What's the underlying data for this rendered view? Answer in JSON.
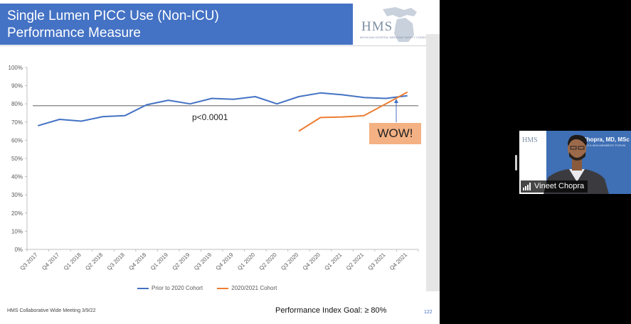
{
  "slide": {
    "title_line1": "Single Lumen PICC Use (Non-ICU)",
    "title_line2": "Performance Measure",
    "logo": {
      "text": "HMS",
      "subtitle": "MICHIGAN HOSPITAL MEDICINE SAFETY CONSORTIUM",
      "icon": "michigan-map-logo"
    },
    "footer_left": "HMS Collaborative Wide Meeting 3/9/22",
    "footer_goal": "Performance Index Goal: ≥ 80%",
    "page_number": "122",
    "wow_callout": "WOW!"
  },
  "chart_data": {
    "type": "line",
    "categories": [
      "Q3 2017",
      "Q4 2017",
      "Q1 2018",
      "Q2 2018",
      "Q3 2018",
      "Q4 2018",
      "Q1 2019",
      "Q2 2019",
      "Q3 2019",
      "Q4 2019",
      "Q1 2020",
      "Q2 2020",
      "Q3 2020",
      "Q4 2020",
      "Q1 2021",
      "Q2 2021",
      "Q3 2021",
      "Q4 2021"
    ],
    "series": [
      {
        "name": "Prior to 2020 Cohort",
        "color": "#4472c4",
        "values": [
          68,
          71.5,
          70.5,
          73,
          73.5,
          79.5,
          82,
          80,
          83,
          82.5,
          84,
          80,
          84,
          86,
          85,
          83.5,
          83,
          84.5
        ]
      },
      {
        "name": "2020/2021 Cohort",
        "color": "#ed7d31",
        "values": [
          null,
          null,
          null,
          null,
          null,
          null,
          null,
          null,
          null,
          null,
          null,
          null,
          65,
          72.5,
          72.8,
          73.5,
          80,
          86.5
        ]
      }
    ],
    "reference_line": {
      "value": 79,
      "color": "#7f7f7f"
    },
    "annotation": "p<0.0001",
    "y_ticks": [
      "0%",
      "10%",
      "20%",
      "30%",
      "40%",
      "50%",
      "60%",
      "70%",
      "80%",
      "90%",
      "100%"
    ],
    "ylim": [
      0,
      100
    ],
    "legend_position": "bottom",
    "grid": false
  },
  "video": {
    "participant_name": "Vineet Chopra",
    "header_text": "Chopra, MD, MSc",
    "subheader_text": "HMS & MHA MEMBERS' FORUM",
    "logo_text": "HMS",
    "icon": "signal-bars-icon"
  }
}
